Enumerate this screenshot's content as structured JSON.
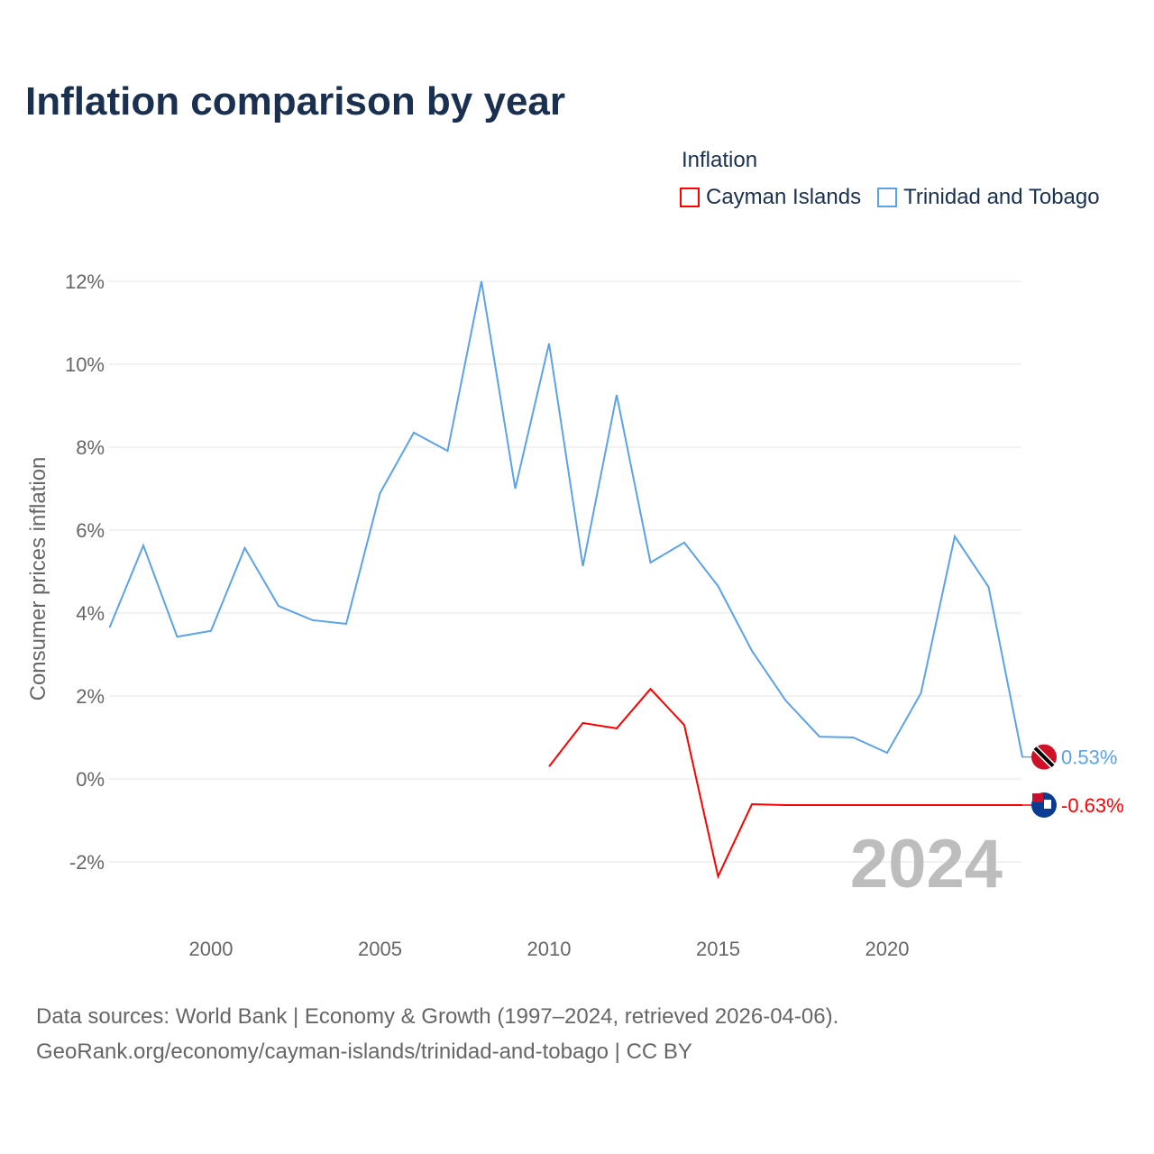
{
  "title": "Inflation comparison by year",
  "legend": {
    "title": "Inflation",
    "items": [
      "Cayman Islands",
      "Trinidad and Tobago"
    ]
  },
  "source": {
    "line1": "Data sources: World Bank | Economy & Growth (1997–2024, retrieved 2026-04-06).",
    "line2": "GeoRank.org/economy/cayman-islands/trinidad-and-tobago | CC BY"
  },
  "chart_data": {
    "type": "line",
    "title": "Inflation comparison by year",
    "ylabel": "Consumer prices inflation",
    "xlabel": "",
    "ylim": [
      -2,
      12
    ],
    "xlim": [
      1997,
      2024
    ],
    "yticks": [
      "-2%",
      "0%",
      "2%",
      "4%",
      "6%",
      "8%",
      "10%",
      "12%"
    ],
    "xticks": [
      "2000",
      "2005",
      "2010",
      "2015",
      "2020"
    ],
    "year_label": "2024",
    "grid": true,
    "series": [
      {
        "name": "Cayman Islands",
        "color": "#ff0000",
        "end_label": "-0.63%",
        "x": [
          2010,
          2011,
          2012,
          2013,
          2014,
          2015,
          2016,
          2017,
          2018,
          2019,
          2020,
          2021,
          2022,
          2023,
          2024
        ],
        "values": [
          0.3,
          1.35,
          1.22,
          2.17,
          1.3,
          -2.35,
          -0.61,
          -0.63,
          -0.63,
          -0.63,
          -0.63,
          -0.63,
          -0.63,
          -0.63,
          -0.63
        ]
      },
      {
        "name": "Trinidad and Tobago",
        "color": "#5ba3e8",
        "end_label": "0.53%",
        "x": [
          1997,
          1998,
          1999,
          2000,
          2001,
          2002,
          2003,
          2004,
          2005,
          2006,
          2007,
          2008,
          2009,
          2010,
          2011,
          2012,
          2013,
          2014,
          2015,
          2016,
          2017,
          2018,
          2019,
          2020,
          2021,
          2022,
          2023,
          2024
        ],
        "values": [
          3.65,
          5.63,
          3.43,
          3.57,
          5.57,
          4.17,
          3.83,
          3.74,
          6.89,
          8.35,
          7.91,
          12.0,
          7.0,
          10.5,
          5.13,
          9.26,
          5.22,
          5.7,
          4.65,
          3.09,
          1.89,
          1.02,
          1.0,
          0.63,
          2.07,
          5.85,
          4.63,
          0.53
        ]
      }
    ]
  }
}
